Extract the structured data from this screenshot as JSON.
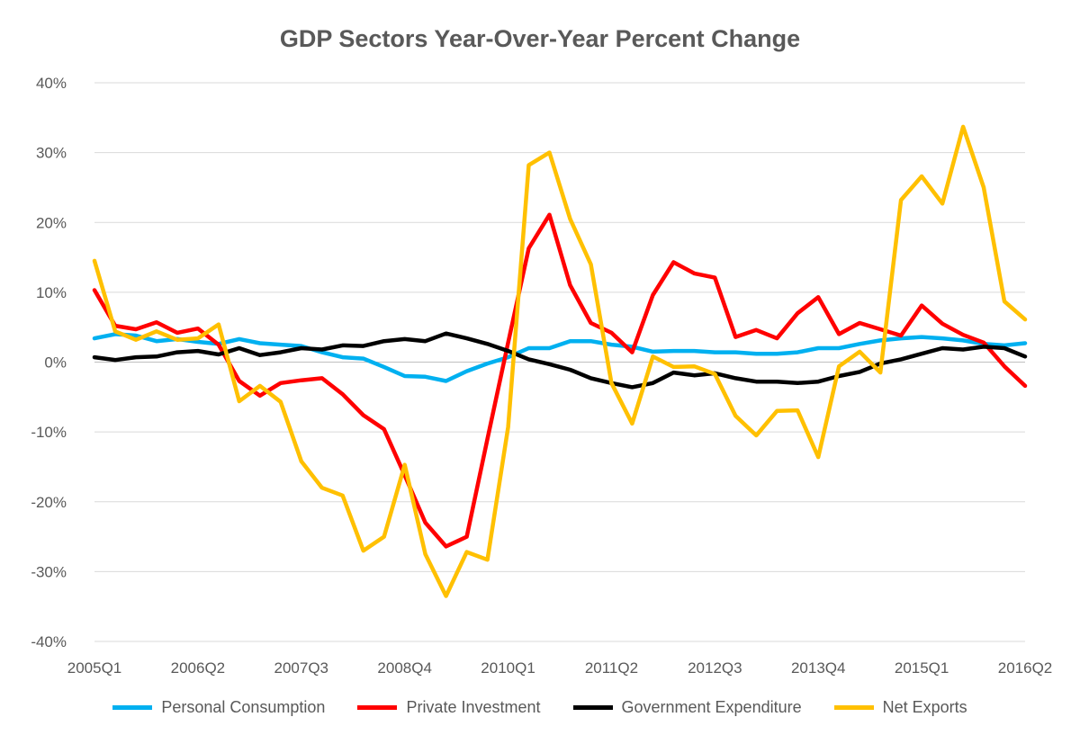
{
  "chart_data": {
    "type": "line",
    "title": "GDP Sectors Year-Over-Year Percent Change",
    "xlabel": "",
    "ylabel": "",
    "ylim": [
      -40,
      40
    ],
    "yticks": [
      "40%",
      "30%",
      "20%",
      "10%",
      "0%",
      "-10%",
      "-20%",
      "-30%",
      "-40%"
    ],
    "ytick_values": [
      40,
      30,
      20,
      10,
      0,
      -10,
      -20,
      -30,
      -40
    ],
    "xtick_labels": [
      "2005Q1",
      "2006Q2",
      "2007Q3",
      "2008Q4",
      "2010Q1",
      "2011Q2",
      "2012Q3",
      "2013Q4",
      "2015Q1",
      "2016Q2"
    ],
    "xtick_indices": [
      0,
      5,
      10,
      15,
      20,
      25,
      30,
      35,
      40,
      45
    ],
    "grid": true,
    "legend_position": "bottom",
    "x": [
      "2005Q1",
      "2005Q2",
      "2005Q3",
      "2005Q4",
      "2006Q1",
      "2006Q2",
      "2006Q3",
      "2006Q4",
      "2007Q1",
      "2007Q2",
      "2007Q3",
      "2007Q4",
      "2008Q1",
      "2008Q2",
      "2008Q3",
      "2008Q4",
      "2009Q1",
      "2009Q2",
      "2009Q3",
      "2009Q4",
      "2010Q1",
      "2010Q2",
      "2010Q3",
      "2010Q4",
      "2011Q1",
      "2011Q2",
      "2011Q3",
      "2011Q4",
      "2012Q1",
      "2012Q2",
      "2012Q3",
      "2012Q4",
      "2013Q1",
      "2013Q2",
      "2013Q3",
      "2013Q4",
      "2014Q1",
      "2014Q2",
      "2014Q3",
      "2014Q4",
      "2015Q1",
      "2015Q2",
      "2015Q3",
      "2015Q4",
      "2016Q1",
      "2016Q2"
    ],
    "series": [
      {
        "name": "Personal Consumption",
        "color": "#00b0f0",
        "values": [
          3.4,
          4.0,
          3.8,
          3.0,
          3.3,
          2.9,
          2.6,
          3.3,
          2.7,
          2.5,
          2.3,
          1.4,
          0.7,
          0.5,
          -0.7,
          -2.0,
          -2.1,
          -2.7,
          -1.3,
          -0.2,
          0.7,
          2.0,
          2.0,
          3.0,
          3.0,
          2.5,
          2.2,
          1.5,
          1.6,
          1.6,
          1.4,
          1.4,
          1.2,
          1.2,
          1.4,
          2.0,
          2.0,
          2.6,
          3.1,
          3.4,
          3.6,
          3.4,
          3.1,
          2.6,
          2.4,
          2.7
        ]
      },
      {
        "name": "Private Investment",
        "color": "#ff0000",
        "values": [
          10.3,
          5.2,
          4.7,
          5.7,
          4.2,
          4.8,
          2.5,
          -2.7,
          -4.8,
          -3.0,
          -2.6,
          -2.3,
          -4.6,
          -7.6,
          -9.6,
          -16.2,
          -23.0,
          -26.4,
          -25.0,
          -11.0,
          2.8,
          16.3,
          21.1,
          11.0,
          5.6,
          4.2,
          1.4,
          9.6,
          14.3,
          12.7,
          12.1,
          3.6,
          4.6,
          3.4,
          7.0,
          9.3,
          4.0,
          5.6,
          4.7,
          3.8,
          8.1,
          5.5,
          3.9,
          2.8,
          -0.6,
          -3.4
        ]
      },
      {
        "name": "Government Expenditure",
        "color": "#000000",
        "values": [
          0.7,
          0.3,
          0.7,
          0.8,
          1.4,
          1.6,
          1.1,
          2.0,
          1.0,
          1.4,
          2.0,
          1.8,
          2.4,
          2.3,
          3.0,
          3.3,
          3.0,
          4.1,
          3.4,
          2.6,
          1.6,
          0.4,
          -0.3,
          -1.1,
          -2.3,
          -3.0,
          -3.6,
          -3.0,
          -1.5,
          -1.9,
          -1.6,
          -2.3,
          -2.8,
          -2.8,
          -3.0,
          -2.8,
          -2.0,
          -1.4,
          -0.2,
          0.4,
          1.2,
          2.0,
          1.8,
          2.2,
          2.0,
          0.8
        ]
      },
      {
        "name": "Net Exports",
        "color": "#ffc000",
        "values": [
          14.5,
          4.4,
          3.2,
          4.4,
          3.2,
          3.4,
          5.4,
          -5.6,
          -3.4,
          -5.7,
          -14.2,
          -18.0,
          -19.1,
          -27.0,
          -25.0,
          -14.7,
          -27.5,
          -33.5,
          -27.2,
          -28.3,
          -9.3,
          28.2,
          30.0,
          20.5,
          14.0,
          -3.0,
          -8.8,
          0.8,
          -0.7,
          -0.6,
          -1.7,
          -7.7,
          -10.5,
          -7.0,
          -6.9,
          -13.6,
          -0.6,
          1.5,
          -1.5,
          23.2,
          26.6,
          22.7,
          33.7,
          25.0,
          8.7,
          6.1
        ]
      }
    ]
  }
}
